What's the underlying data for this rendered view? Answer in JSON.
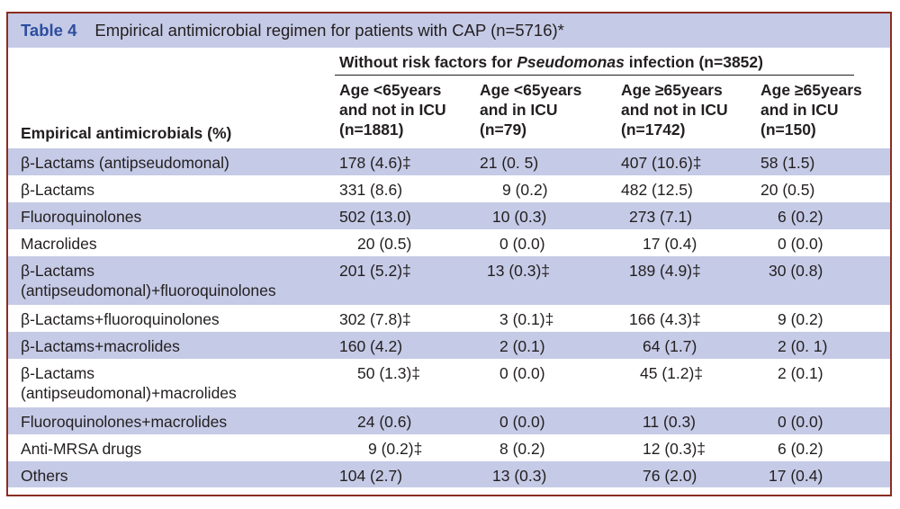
{
  "caption": {
    "label": "Table 4",
    "text": "Empirical antimicrobial regimen for patients with CAP (n=5716)*"
  },
  "header": {
    "group_pre": "Without risk factors for ",
    "group_em": "Pseudomonas",
    "group_post": " infection (n=3852)",
    "row_header": "Empirical antimicrobials (%)",
    "columns": [
      {
        "l1": "Age <65years",
        "l2": "and not in ICU",
        "l3": "(n=1881)"
      },
      {
        "l1": "Age <65years",
        "l2": "and in ICU",
        "l3": "(n=79)"
      },
      {
        "l1": "Age ≥65years",
        "l2": "and not in ICU",
        "l3": "(n=1742)"
      },
      {
        "l1": "Age ≥65years",
        "l2": "and in ICU",
        "l3": "(n=150)"
      }
    ]
  },
  "rows": [
    {
      "l1": "β-Lactams (antipseudomonal)",
      "l2": "",
      "v": [
        "178 (4.6)‡",
        "21 (0. 5)",
        "407 (10.6)‡",
        "58 (1.5)"
      ]
    },
    {
      "l1": "β-Lactams",
      "l2": "",
      "v": [
        "331 (8.6)",
        "9 (0.2)",
        "482 (12.5)",
        "20 (0.5)"
      ]
    },
    {
      "l1": "Fluoroquinolones",
      "l2": "",
      "v": [
        "502 (13.0)",
        "10 (0.3)",
        "273 (7.1)",
        "6 (0.2)"
      ]
    },
    {
      "l1": "Macrolides",
      "l2": "",
      "v": [
        "20 (0.5)",
        "0 (0.0)",
        "17 (0.4)",
        "0 (0.0)"
      ]
    },
    {
      "l1": "β-Lactams",
      "l2": "(antipseudomonal)+fluoroquinolones",
      "v": [
        "201 (5.2)‡",
        "13 (0.3)‡",
        "189 (4.9)‡",
        "30 (0.8)"
      ]
    },
    {
      "l1": "β-Lactams+fluoroquinolones",
      "l2": "",
      "v": [
        "302 (7.8)‡",
        "3 (0.1)‡",
        "166 (4.3)‡",
        "9 (0.2)"
      ]
    },
    {
      "l1": "β-Lactams+macrolides",
      "l2": "",
      "v": [
        "160 (4.2)",
        "2 (0.1)",
        "64 (1.7)",
        "2 (0. 1)"
      ]
    },
    {
      "l1": "β-Lactams",
      "l2": "(antipseudomonal)+macrolides",
      "v": [
        "50 (1.3)‡",
        "0 (0.0)",
        "45 (1.2)‡",
        "2 (0.1)"
      ]
    },
    {
      "l1": "Fluoroquinolones+macrolides",
      "l2": "",
      "v": [
        "24 (0.6)",
        "0 (0.0)",
        "11 (0.3)",
        "0 (0.0)"
      ]
    },
    {
      "l1": "Anti-MRSA drugs",
      "l2": "",
      "v": [
        "9 (0.2)‡",
        "8 (0.2)",
        "12 (0.3)‡",
        "6 (0.2)"
      ]
    },
    {
      "l1": "Others",
      "l2": "",
      "v": [
        "104 (2.7)",
        "13 (0.3)",
        "76 (2.0)",
        "17 (0.4)"
      ]
    }
  ],
  "colors": {
    "shade": "#c5cae6",
    "label": "#2d4ea0",
    "border": "#8a2d22"
  }
}
